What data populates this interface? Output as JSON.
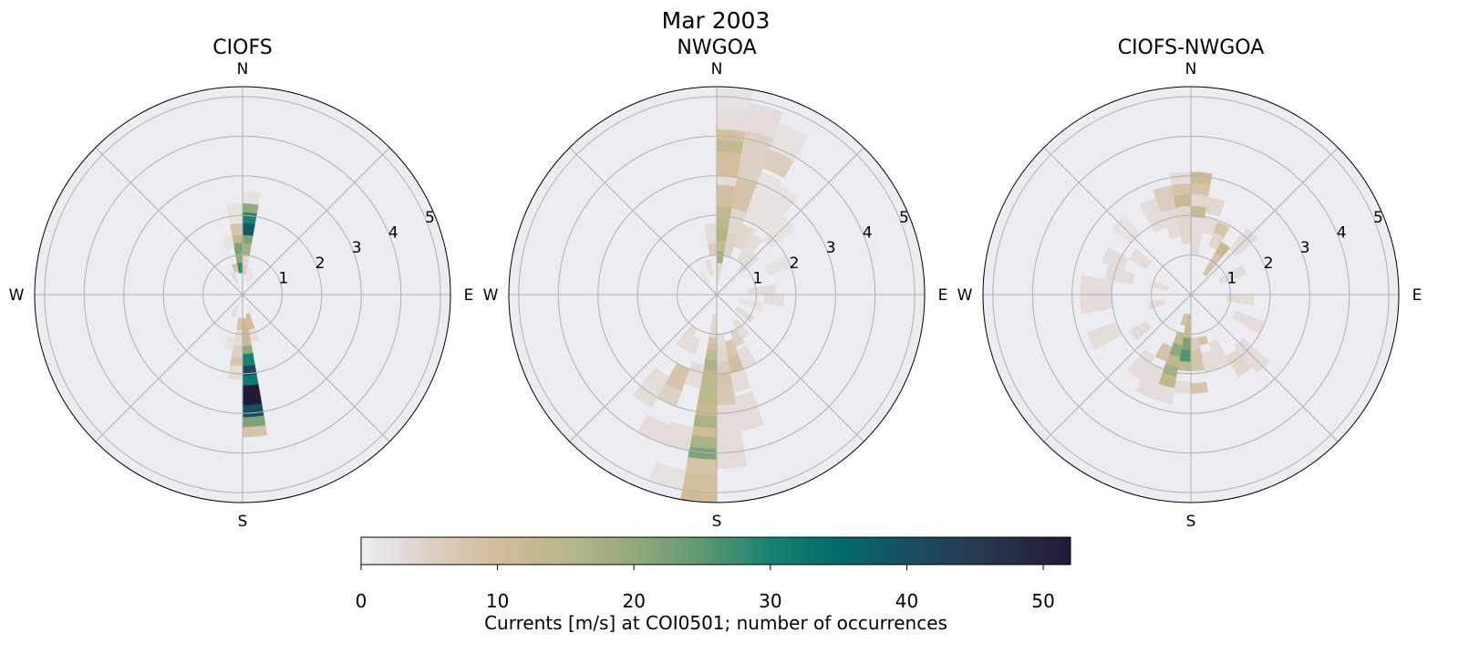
{
  "chart_data": {
    "type": "heatmap",
    "subtype": "polar-histogram",
    "title": "Mar 2003",
    "cell_format": [
      "direction_start_deg",
      "direction_end_deg",
      "speed_start_m_s",
      "speed_end_m_s",
      "count"
    ],
    "radial_ticks": [
      "1",
      "2",
      "3",
      "4",
      "5"
    ],
    "radial_max": 5.25,
    "cardinals": {
      "n": "N",
      "e": "E",
      "s": "S",
      "w": "W"
    },
    "colorbar": {
      "label": "Currents [m/s] at COI0501; number of occurrences",
      "ticks": [
        "0",
        "10",
        "20",
        "30",
        "40",
        "50"
      ],
      "range": [
        0,
        52
      ],
      "colormap": [
        [
          0,
          "#eeedf2"
        ],
        [
          5,
          "#ddd1c6"
        ],
        [
          10,
          "#d2bc98"
        ],
        [
          15,
          "#b9b78a"
        ],
        [
          20,
          "#93a97b"
        ],
        [
          25,
          "#5f9872"
        ],
        [
          30,
          "#178272"
        ],
        [
          35,
          "#036a6a"
        ],
        [
          40,
          "#184e62"
        ],
        [
          45,
          "#283a52"
        ],
        [
          52,
          "#221a3a"
        ]
      ]
    },
    "panels": [
      {
        "title": "CIOFS",
        "cells": [
          [
            0,
            10,
            2.3,
            2.6,
            2
          ],
          [
            0,
            10,
            2.07,
            2.3,
            20
          ],
          [
            0,
            10,
            1.8,
            2.07,
            30
          ],
          [
            0,
            10,
            1.5,
            1.8,
            38
          ],
          [
            0,
            10,
            1.3,
            1.5,
            22
          ],
          [
            0,
            10,
            1.0,
            1.3,
            18
          ],
          [
            0,
            10,
            0.75,
            1.0,
            4
          ],
          [
            0,
            10,
            0.5,
            0.75,
            5
          ],
          [
            350,
            360,
            1.85,
            2.3,
            2
          ],
          [
            350,
            360,
            1.5,
            1.8,
            8
          ],
          [
            350,
            360,
            1.3,
            1.5,
            14
          ],
          [
            350,
            360,
            1.05,
            1.3,
            22
          ],
          [
            350,
            360,
            0.8,
            1.05,
            20
          ],
          [
            350,
            360,
            0.55,
            0.8,
            28
          ],
          [
            340,
            350,
            0.6,
            0.8,
            8
          ],
          [
            340,
            350,
            1.2,
            1.5,
            2
          ],
          [
            330,
            340,
            0.3,
            0.6,
            3
          ],
          [
            20,
            30,
            0.3,
            0.6,
            2
          ],
          [
            10,
            20,
            0.4,
            0.7,
            2
          ],
          [
            170,
            180,
            0.6,
            0.8,
            10
          ],
          [
            170,
            180,
            0.8,
            1.3,
            12
          ],
          [
            170,
            180,
            1.3,
            1.5,
            20
          ],
          [
            170,
            180,
            1.5,
            1.8,
            30
          ],
          [
            170,
            180,
            1.8,
            2.05,
            42
          ],
          [
            170,
            180,
            2.05,
            2.3,
            32
          ],
          [
            170,
            180,
            2.3,
            2.8,
            52
          ],
          [
            170,
            180,
            2.8,
            3.1,
            40
          ],
          [
            170,
            180,
            3.1,
            3.35,
            22
          ],
          [
            170,
            180,
            3.35,
            3.6,
            8
          ],
          [
            180,
            190,
            0.6,
            0.9,
            8
          ],
          [
            180,
            190,
            0.9,
            1.3,
            3
          ],
          [
            180,
            190,
            1.3,
            1.6,
            5
          ],
          [
            180,
            190,
            1.6,
            1.8,
            8
          ],
          [
            180,
            190,
            1.8,
            2.15,
            3
          ],
          [
            190,
            200,
            1.1,
            1.4,
            2
          ],
          [
            160,
            170,
            0.5,
            0.9,
            10
          ],
          [
            160,
            170,
            0.9,
            1.2,
            3
          ],
          [
            200,
            210,
            0.3,
            0.6,
            3
          ],
          [
            150,
            160,
            0.3,
            0.5,
            2
          ]
        ]
      },
      {
        "title": "NWGOA",
        "cells": [
          [
            0,
            10,
            4.7,
            5.2,
            2
          ],
          [
            0,
            10,
            4.17,
            4.7,
            3
          ],
          [
            0,
            10,
            3.9,
            4.17,
            9
          ],
          [
            0,
            10,
            3.6,
            3.9,
            13
          ],
          [
            0,
            10,
            3.0,
            3.6,
            9
          ],
          [
            0,
            10,
            2.77,
            3.0,
            3
          ],
          [
            0,
            10,
            2.23,
            2.77,
            9
          ],
          [
            0,
            10,
            1.93,
            2.23,
            13
          ],
          [
            0,
            10,
            1.67,
            1.93,
            14
          ],
          [
            0,
            10,
            1.36,
            1.67,
            16
          ],
          [
            0,
            10,
            1.1,
            1.36,
            13
          ],
          [
            0,
            10,
            0.8,
            1.1,
            18
          ],
          [
            0,
            10,
            0.3,
            0.8,
            4
          ],
          [
            10,
            20,
            4.2,
            4.9,
            3
          ],
          [
            10,
            20,
            3.0,
            4.2,
            5
          ],
          [
            10,
            20,
            2.2,
            3.0,
            8
          ],
          [
            10,
            20,
            1.6,
            2.2,
            4
          ],
          [
            10,
            20,
            1.0,
            1.6,
            5
          ],
          [
            20,
            30,
            3.9,
            4.6,
            2
          ],
          [
            20,
            30,
            3.4,
            3.9,
            6
          ],
          [
            20,
            30,
            2.0,
            3.3,
            2
          ],
          [
            20,
            30,
            1.3,
            1.9,
            4
          ],
          [
            30,
            40,
            2.0,
            3.2,
            2
          ],
          [
            30,
            40,
            1.0,
            1.8,
            3
          ],
          [
            40,
            50,
            1.8,
            2.6,
            2
          ],
          [
            40,
            50,
            0.8,
            1.4,
            3
          ],
          [
            60,
            70,
            1.4,
            2.0,
            2
          ],
          [
            80,
            90,
            0.8,
            1.5,
            3
          ],
          [
            90,
            100,
            1.2,
            1.7,
            3
          ],
          [
            350,
            360,
            1.0,
            1.3,
            6
          ],
          [
            350,
            360,
            1.3,
            1.8,
            3
          ],
          [
            340,
            350,
            0.5,
            0.9,
            3
          ],
          [
            320,
            330,
            0.3,
            0.7,
            2
          ],
          [
            180,
            190,
            0.5,
            1.1,
            4
          ],
          [
            180,
            190,
            1.1,
            1.4,
            9
          ],
          [
            180,
            190,
            1.4,
            1.67,
            14
          ],
          [
            180,
            190,
            1.67,
            1.93,
            17
          ],
          [
            180,
            190,
            1.93,
            2.77,
            14
          ],
          [
            180,
            190,
            2.77,
            3.07,
            12
          ],
          [
            180,
            190,
            3.07,
            3.37,
            17
          ],
          [
            180,
            190,
            3.37,
            3.6,
            10
          ],
          [
            180,
            190,
            3.6,
            3.9,
            17
          ],
          [
            180,
            190,
            3.9,
            4.17,
            22
          ],
          [
            180,
            190,
            4.17,
            4.5,
            8
          ],
          [
            180,
            190,
            4.5,
            5.0,
            9
          ],
          [
            180,
            190,
            5.0,
            5.25,
            10
          ],
          [
            190,
            200,
            1.8,
            2.4,
            3
          ],
          [
            190,
            200,
            3.4,
            4.0,
            3
          ],
          [
            190,
            200,
            4.5,
            5.0,
            2
          ],
          [
            200,
            210,
            1.2,
            1.6,
            3
          ],
          [
            200,
            210,
            2.0,
            2.6,
            8
          ],
          [
            200,
            210,
            2.6,
            3.0,
            5
          ],
          [
            200,
            210,
            3.5,
            4.0,
            3
          ],
          [
            210,
            220,
            1.0,
            1.6,
            3
          ],
          [
            210,
            220,
            2.4,
            3.3,
            3
          ],
          [
            170,
            180,
            1.0,
            1.3,
            3
          ],
          [
            170,
            180,
            1.3,
            1.7,
            4
          ],
          [
            170,
            180,
            1.7,
            2.0,
            6
          ],
          [
            170,
            180,
            2.0,
            2.3,
            8
          ],
          [
            170,
            180,
            2.3,
            2.8,
            7
          ],
          [
            170,
            180,
            2.8,
            3.6,
            3
          ],
          [
            170,
            180,
            3.6,
            4.4,
            3
          ],
          [
            160,
            170,
            1.2,
            1.6,
            7
          ],
          [
            160,
            170,
            1.6,
            2.0,
            9
          ],
          [
            160,
            170,
            2.0,
            2.5,
            3
          ],
          [
            160,
            170,
            2.6,
            3.5,
            3
          ],
          [
            150,
            160,
            1.0,
            1.4,
            5
          ],
          [
            150,
            160,
            1.5,
            2.0,
            3
          ],
          [
            140,
            150,
            0.8,
            1.3,
            3
          ],
          [
            120,
            130,
            0.6,
            1.1,
            3
          ],
          [
            100,
            110,
            0.6,
            1.2,
            2
          ]
        ]
      },
      {
        "title": "CIOFS-NWGOA",
        "cells": [
          [
            350,
            360,
            2.8,
            3.1,
            3
          ],
          [
            350,
            360,
            2.53,
            2.8,
            8
          ],
          [
            350,
            360,
            2.23,
            2.53,
            12
          ],
          [
            350,
            360,
            1.3,
            2.23,
            4
          ],
          [
            0,
            10,
            2.8,
            3.1,
            11
          ],
          [
            0,
            10,
            2.53,
            2.8,
            8
          ],
          [
            0,
            10,
            2.23,
            2.53,
            4
          ],
          [
            0,
            10,
            1.96,
            2.23,
            12
          ],
          [
            0,
            10,
            1.0,
            1.96,
            3
          ],
          [
            340,
            350,
            2.2,
            2.8,
            6
          ],
          [
            340,
            350,
            1.5,
            2.2,
            3
          ],
          [
            330,
            340,
            1.8,
            2.6,
            3
          ],
          [
            10,
            20,
            2.1,
            2.5,
            4
          ],
          [
            10,
            20,
            1.6,
            2.0,
            3
          ],
          [
            20,
            30,
            1.66,
            1.96,
            8
          ],
          [
            20,
            30,
            1.3,
            1.66,
            4
          ],
          [
            30,
            40,
            1.2,
            1.54,
            12
          ],
          [
            30,
            40,
            0.9,
            1.2,
            8
          ],
          [
            30,
            40,
            0.6,
            0.9,
            8
          ],
          [
            40,
            50,
            1.5,
            2.2,
            3
          ],
          [
            60,
            70,
            0.8,
            1.5,
            3
          ],
          [
            90,
            100,
            0.9,
            1.6,
            3
          ],
          [
            110,
            120,
            1.2,
            2.0,
            3
          ],
          [
            130,
            140,
            1.7,
            2.6,
            3
          ],
          [
            140,
            150,
            1.8,
            2.4,
            4
          ],
          [
            180,
            190,
            0.5,
            0.8,
            12
          ],
          [
            180,
            190,
            0.8,
            1.1,
            12
          ],
          [
            180,
            190,
            1.1,
            1.4,
            22
          ],
          [
            180,
            190,
            1.4,
            1.7,
            26
          ],
          [
            180,
            190,
            1.7,
            1.93,
            14
          ],
          [
            180,
            190,
            2.2,
            2.5,
            3
          ],
          [
            190,
            200,
            0.5,
            0.8,
            8
          ],
          [
            190,
            200,
            1.0,
            1.3,
            13
          ],
          [
            190,
            200,
            1.3,
            1.6,
            20
          ],
          [
            190,
            200,
            1.6,
            1.85,
            14
          ],
          [
            190,
            200,
            1.85,
            2.1,
            18
          ],
          [
            190,
            200,
            2.1,
            2.4,
            14
          ],
          [
            190,
            200,
            2.4,
            2.8,
            3
          ],
          [
            200,
            210,
            1.4,
            1.8,
            8
          ],
          [
            200,
            210,
            2.0,
            2.8,
            3
          ],
          [
            210,
            220,
            1.8,
            2.5,
            3
          ],
          [
            170,
            180,
            1.1,
            1.4,
            6
          ],
          [
            170,
            180,
            1.4,
            1.93,
            8
          ],
          [
            170,
            180,
            2.24,
            2.5,
            8
          ],
          [
            160,
            170,
            1.1,
            1.3,
            8
          ],
          [
            160,
            170,
            1.5,
            2.0,
            3
          ],
          [
            150,
            160,
            1.3,
            2.0,
            3
          ],
          [
            260,
            270,
            2.0,
            2.8,
            3
          ],
          [
            270,
            280,
            2.0,
            2.8,
            3
          ],
          [
            280,
            290,
            1.5,
            2.2,
            3
          ],
          [
            290,
            300,
            1.8,
            2.4,
            3
          ],
          [
            300,
            310,
            1.3,
            1.8,
            3
          ],
          [
            240,
            250,
            2.0,
            2.8,
            3
          ],
          [
            230,
            240,
            1.3,
            1.8,
            3
          ],
          [
            250,
            260,
            0.7,
            1.1,
            3
          ],
          [
            280,
            290,
            0.6,
            1.0,
            3
          ],
          [
            310,
            320,
            2.0,
            2.6,
            2
          ]
        ]
      }
    ]
  }
}
